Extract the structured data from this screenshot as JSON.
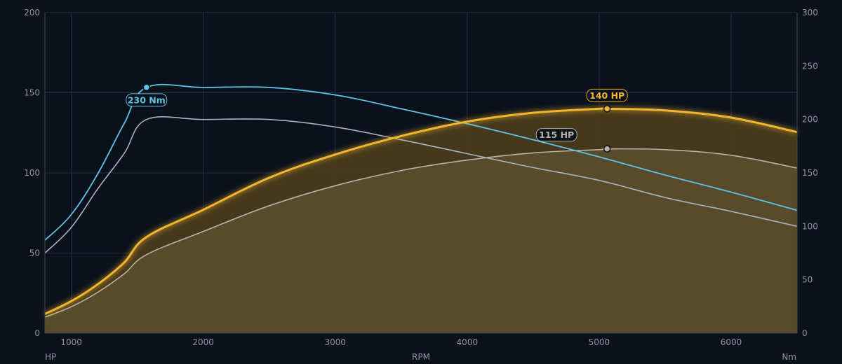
{
  "colors": {
    "background": "#0b111b",
    "grid": "#253042",
    "axis": "#3b4656",
    "tick_text": "#8c95a3",
    "power_tuned": "#f2b52e",
    "power_area_tuned": "#4a3c1b",
    "power_stock": "#b8b3a6",
    "power_area_stock": "#5a4c2d",
    "torque_tuned": "#5ec4e6",
    "torque_stock": "#a9b2c2"
  },
  "chart_data": {
    "type": "line",
    "title": "",
    "xlabel": "RPM",
    "ylabel_left": "HP",
    "ylabel_right": "Nm",
    "xlim": [
      800,
      6500
    ],
    "ylim_left": [
      0,
      200
    ],
    "ylim_right": [
      0,
      300
    ],
    "x_ticks": [
      1000,
      2000,
      3000,
      4000,
      5000,
      6000
    ],
    "y_left_ticks": [
      0,
      50,
      100,
      150,
      200
    ],
    "y_right_ticks": [
      0,
      50,
      100,
      150,
      200,
      250,
      300
    ],
    "grid": true,
    "series": [
      {
        "key": "power_tuned",
        "axis": "left",
        "filled": true,
        "points": [
          [
            800,
            12
          ],
          [
            1000,
            20
          ],
          [
            1200,
            30.5
          ],
          [
            1400,
            44
          ],
          [
            1570,
            60
          ],
          [
            2000,
            77
          ],
          [
            2500,
            97
          ],
          [
            3000,
            111.5
          ],
          [
            3500,
            123
          ],
          [
            4000,
            132
          ],
          [
            4500,
            137.5
          ],
          [
            5000,
            140
          ],
          [
            5060,
            140
          ],
          [
            5500,
            139
          ],
          [
            6000,
            134.5
          ],
          [
            6500,
            125.5
          ]
        ]
      },
      {
        "key": "power_stock",
        "axis": "left",
        "filled": true,
        "points": [
          [
            800,
            10
          ],
          [
            1000,
            16.5
          ],
          [
            1200,
            25.5
          ],
          [
            1400,
            37
          ],
          [
            1570,
            49
          ],
          [
            2000,
            63.5
          ],
          [
            2500,
            79.5
          ],
          [
            3000,
            92
          ],
          [
            3500,
            101.5
          ],
          [
            4000,
            108
          ],
          [
            4500,
            112.5
          ],
          [
            5000,
            114.5
          ],
          [
            5060,
            115
          ],
          [
            5500,
            114.5
          ],
          [
            6000,
            111
          ],
          [
            6500,
            103
          ]
        ]
      },
      {
        "key": "torque_tuned",
        "axis": "right",
        "filled": false,
        "points": [
          [
            800,
            87
          ],
          [
            1000,
            111
          ],
          [
            1200,
            149
          ],
          [
            1400,
            196
          ],
          [
            1570,
            230
          ],
          [
            2000,
            230
          ],
          [
            2500,
            230
          ],
          [
            3000,
            223
          ],
          [
            3500,
            210
          ],
          [
            4000,
            196
          ],
          [
            4500,
            181
          ],
          [
            5000,
            165
          ],
          [
            5500,
            148
          ],
          [
            6000,
            132
          ],
          [
            6500,
            115
          ]
        ]
      },
      {
        "key": "torque_stock",
        "axis": "right",
        "filled": false,
        "points": [
          [
            800,
            75
          ],
          [
            1000,
            99
          ],
          [
            1200,
            135
          ],
          [
            1400,
            168
          ],
          [
            1570,
            200
          ],
          [
            2000,
            200
          ],
          [
            2500,
            200
          ],
          [
            3000,
            193
          ],
          [
            3500,
            181
          ],
          [
            4000,
            168
          ],
          [
            4500,
            155
          ],
          [
            5000,
            143
          ],
          [
            5500,
            127
          ],
          [
            6000,
            114
          ],
          [
            6500,
            100
          ]
        ]
      }
    ],
    "annotations": [
      {
        "text": "230 Nm",
        "series": "torque_tuned",
        "x": 1570,
        "y": 230
      },
      {
        "text": "140 HP",
        "series": "power_tuned",
        "x": 5060,
        "y": 140
      },
      {
        "text": "115 HP",
        "series": "power_stock",
        "x": 5060,
        "y": 115
      }
    ]
  }
}
